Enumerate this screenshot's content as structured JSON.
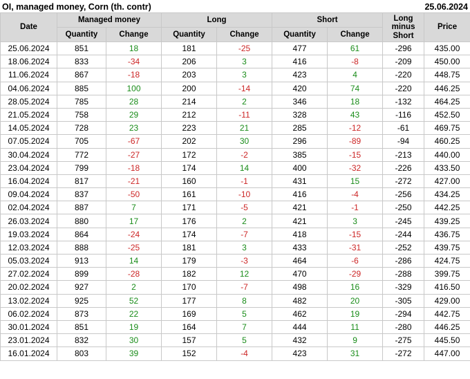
{
  "colors": {
    "positive_change": "#198c19",
    "negative_change": "#cc2626",
    "header_bg": "#d9d9d9",
    "grid_border": "#c8c8c8",
    "text": "#000000"
  },
  "chart_data": {
    "type": "table",
    "title": "OI, managed money, Corn (th. contr)",
    "report_date": "25.06.2024",
    "column_groups": [
      {
        "label": "Managed money",
        "span": 2
      },
      {
        "label": "Long",
        "span": 2
      },
      {
        "label": "Short",
        "span": 2
      }
    ],
    "columns": [
      "Date",
      "Quantity",
      "Change",
      "Quantity",
      "Change",
      "Quantity",
      "Change",
      "Long minus Short",
      "Price"
    ],
    "rows": [
      [
        "25.06.2024",
        851,
        18,
        181,
        -25,
        477,
        61,
        -296,
        "435.00"
      ],
      [
        "18.06.2024",
        833,
        -34,
        206,
        3,
        416,
        -8,
        -209,
        "450.00"
      ],
      [
        "11.06.2024",
        867,
        -18,
        203,
        3,
        423,
        4,
        -220,
        "448.75"
      ],
      [
        "04.06.2024",
        885,
        100,
        200,
        -14,
        420,
        74,
        -220,
        "446.25"
      ],
      [
        "28.05.2024",
        785,
        28,
        214,
        2,
        346,
        18,
        -132,
        "464.25"
      ],
      [
        "21.05.2024",
        758,
        29,
        212,
        -11,
        328,
        43,
        -116,
        "452.50"
      ],
      [
        "14.05.2024",
        728,
        23,
        223,
        21,
        285,
        -12,
        -61,
        "469.75"
      ],
      [
        "07.05.2024",
        705,
        -67,
        202,
        30,
        296,
        -89,
        -94,
        "460.25"
      ],
      [
        "30.04.2024",
        772,
        -27,
        172,
        -2,
        385,
        -15,
        -213,
        "440.00"
      ],
      [
        "23.04.2024",
        799,
        -18,
        174,
        14,
        400,
        -32,
        -226,
        "433.50"
      ],
      [
        "16.04.2024",
        817,
        -21,
        160,
        -1,
        431,
        15,
        -272,
        "427.00"
      ],
      [
        "09.04.2024",
        837,
        -50,
        161,
        -10,
        416,
        -4,
        -256,
        "434.25"
      ],
      [
        "02.04.2024",
        887,
        7,
        171,
        -5,
        421,
        -1,
        -250,
        "442.25"
      ],
      [
        "26.03.2024",
        880,
        17,
        176,
        2,
        421,
        3,
        -245,
        "439.25"
      ],
      [
        "19.03.2024",
        864,
        -24,
        174,
        -7,
        418,
        -15,
        -244,
        "436.75"
      ],
      [
        "12.03.2024",
        888,
        -25,
        181,
        3,
        433,
        -31,
        -252,
        "439.75"
      ],
      [
        "05.03.2024",
        913,
        14,
        179,
        -3,
        464,
        -6,
        -286,
        "424.75"
      ],
      [
        "27.02.2024",
        899,
        -28,
        182,
        12,
        470,
        -29,
        -288,
        "399.75"
      ],
      [
        "20.02.2024",
        927,
        2,
        170,
        -7,
        498,
        16,
        -329,
        "416.50"
      ],
      [
        "13.02.2024",
        925,
        52,
        177,
        8,
        482,
        20,
        -305,
        "429.00"
      ],
      [
        "06.02.2024",
        873,
        22,
        169,
        5,
        462,
        19,
        -294,
        "442.75"
      ],
      [
        "30.01.2024",
        851,
        19,
        164,
        7,
        444,
        11,
        -280,
        "446.25"
      ],
      [
        "23.01.2024",
        832,
        30,
        157,
        5,
        432,
        9,
        -275,
        "445.50"
      ],
      [
        "16.01.2024",
        803,
        39,
        152,
        -4,
        423,
        31,
        -272,
        "447.00"
      ]
    ]
  }
}
